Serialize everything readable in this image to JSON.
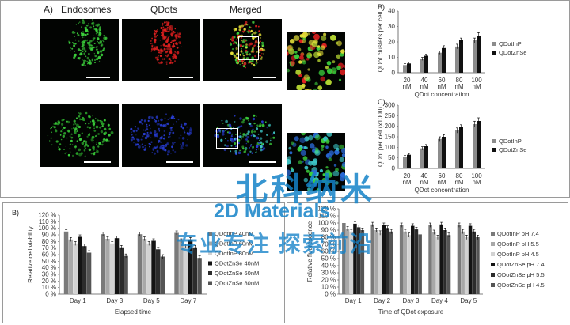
{
  "figure": {
    "panel_a_label": "A)",
    "col_titles": [
      "Endosomes",
      "QDots",
      "Merged"
    ],
    "panel_b_top_label": "B)",
    "panel_c_top_label": "C)",
    "panel_b_bottom_label": "B)"
  },
  "colors": {
    "endosome_green": "#3cd13c",
    "qdot_red": "#e02020",
    "qdot_blue": "#2a3fd8",
    "merged_yellow": "#e6e23a",
    "cyan": "#3ec8c8"
  },
  "chart_data": [
    {
      "type": "bar",
      "categories": [
        "20\nnM",
        "40\nnM",
        "60\nnM",
        "80\nnM",
        "100\nnM"
      ],
      "series": [
        {
          "name": "QDotInP",
          "color": "#8c8c8c",
          "values": [
            5,
            9,
            13,
            17,
            21
          ],
          "errors": [
            1,
            1,
            1,
            1.5,
            1.5
          ]
        },
        {
          "name": "QDotZnSe",
          "color": "#111111",
          "values": [
            6,
            11,
            16,
            21,
            24
          ],
          "errors": [
            1,
            1,
            1.5,
            1.5,
            2
          ]
        }
      ],
      "ylabel": "QDot clusters per cell",
      "xlabel": "QDot  concentration",
      "ylim": [
        0,
        40
      ],
      "yticks": [
        "0",
        "10",
        "20",
        "30",
        "40"
      ],
      "legend": "right"
    },
    {
      "type": "bar",
      "categories": [
        "20\nnM",
        "40\nnM",
        "60\nnM",
        "80\nnM",
        "100\nnM"
      ],
      "series": [
        {
          "name": "QDotInP",
          "color": "#8c8c8c",
          "values": [
            55,
            95,
            140,
            180,
            210
          ],
          "errors": [
            6,
            8,
            10,
            12,
            14
          ]
        },
        {
          "name": "QDotZnSe",
          "color": "#111111",
          "values": [
            65,
            105,
            150,
            195,
            225
          ],
          "errors": [
            6,
            8,
            10,
            12,
            15
          ]
        }
      ],
      "ylabel": "QDot  per cell  (x1000)",
      "xlabel": "QDot  concentration",
      "ylim": [
        0,
        300
      ],
      "yticks": [
        "0",
        "50",
        "100",
        "150",
        "200",
        "250",
        "300"
      ],
      "legend": "right"
    },
    {
      "type": "bar",
      "categories": [
        "Day 1",
        "Day 3",
        "Day 5",
        "Day 7"
      ],
      "series": [
        {
          "name": "QDotInP 40nM",
          "color": "#7a7a7a",
          "values": [
            95,
            91,
            91,
            93
          ],
          "errors": [
            3,
            3,
            3,
            3
          ]
        },
        {
          "name": "QDotInP 60nM",
          "color": "#a8a8a8",
          "values": [
            83,
            84,
            84,
            81
          ],
          "errors": [
            3,
            3,
            3,
            3
          ]
        },
        {
          "name": "QDotInP 80nM",
          "color": "#d2d2d2",
          "values": [
            77,
            77,
            77,
            73
          ],
          "errors": [
            3,
            3,
            3,
            3
          ]
        },
        {
          "name": "QDotZnSe 40nM",
          "color": "#141414",
          "values": [
            87,
            85,
            81,
            83
          ],
          "errors": [
            3,
            3,
            3,
            3
          ]
        },
        {
          "name": "QDotZnSe 60nM",
          "color": "#2c2c2c",
          "values": [
            73,
            71,
            68,
            71
          ],
          "errors": [
            3,
            3,
            3,
            3
          ]
        },
        {
          "name": "QDotZnSe 80nM",
          "color": "#555555",
          "values": [
            63,
            58,
            57,
            55
          ],
          "errors": [
            3,
            3,
            3,
            3
          ]
        }
      ],
      "ylabel": "Relative cell viability",
      "xlabel": "Elapsed time",
      "ylim": [
        0,
        120
      ],
      "yticks": [
        "0 %",
        "10 %",
        "20 %",
        "30 %",
        "40 %",
        "50 %",
        "60 %",
        "70 %",
        "80 %",
        "90 %",
        "100 %",
        "110 %",
        "120 %"
      ],
      "legend": "right"
    },
    {
      "type": "bar",
      "categories": [
        "Day 1",
        "Day 2",
        "Day 3",
        "Day 4",
        "Day 5"
      ],
      "series": [
        {
          "name": "QDotInP pH 7.4",
          "color": "#7a7a7a",
          "values": [
            100,
            98,
            97,
            97,
            97
          ],
          "errors": [
            3,
            3,
            3,
            3,
            3
          ]
        },
        {
          "name": "QDotInP pH 5.5",
          "color": "#a8a8a8",
          "values": [
            92,
            90,
            88,
            87,
            88
          ],
          "errors": [
            3,
            3,
            3,
            3,
            3
          ]
        },
        {
          "name": "QDotInP pH 4.5",
          "color": "#d2d2d2",
          "values": [
            88,
            86,
            83,
            80,
            80
          ],
          "errors": [
            3,
            3,
            3,
            3,
            3
          ]
        },
        {
          "name": "QDotZnSe pH 7.4",
          "color": "#141414",
          "values": [
            99,
            97,
            96,
            98,
            96
          ],
          "errors": [
            3,
            3,
            3,
            3,
            3
          ]
        },
        {
          "name": "QDotZnSe pH 5.5",
          "color": "#2c2c2c",
          "values": [
            94,
            93,
            91,
            90,
            88
          ],
          "errors": [
            3,
            3,
            3,
            3,
            3
          ]
        },
        {
          "name": "QDotZnSe pH 4.5",
          "color": "#555555",
          "values": [
            90,
            88,
            84,
            83,
            80
          ],
          "errors": [
            3,
            3,
            3,
            3,
            3
          ]
        }
      ],
      "ylabel": "Relative fluorescence",
      "xlabel": "Time of QDot exposure",
      "ylim": [
        0,
        120
      ],
      "yticks": [
        "0 %",
        "10 %",
        "20 %",
        "30 %",
        "40 %",
        "50 %",
        "60 %",
        "70 %",
        "80 %",
        "90 %",
        "100 %",
        "110 %",
        "120 %"
      ],
      "legend": "right"
    }
  ],
  "watermark": {
    "line1": "北科纳米",
    "line2": "2D Materials",
    "line3": "专业专注  探索前沿"
  }
}
